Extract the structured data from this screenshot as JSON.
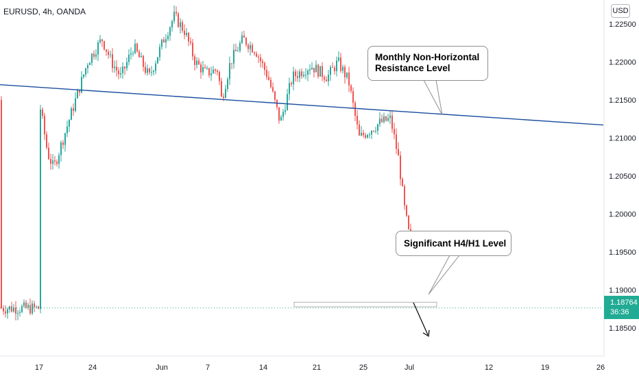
{
  "symbol": {
    "label": "EURUSD, 4h, OANDA"
  },
  "currency": {
    "label": "USD"
  },
  "price_tag": {
    "price": "1.18764",
    "countdown": "36:36"
  },
  "annotations": {
    "resistance": {
      "line1": "Monthly Non-Horizontal",
      "line2": "Resistance Level"
    },
    "significant": {
      "text": "Significant H4/H1 Level"
    }
  },
  "colors": {
    "up": "#26a69a",
    "down": "#ef5350",
    "trendline": "#1c4fa0",
    "price_line": "#22ab94",
    "axis_text": "#131722"
  },
  "chart_data": {
    "type": "candlestick",
    "symbol": "EURUSD",
    "timeframe": "4h",
    "broker": "OANDA",
    "ylim": [
      1.1815,
      1.2275
    ],
    "y_ticks": [
      "1.22500",
      "1.22000",
      "1.21500",
      "1.21000",
      "1.20500",
      "1.20000",
      "1.19500",
      "1.19000",
      "1.18500"
    ],
    "y_tick_values": [
      1.225,
      1.22,
      1.215,
      1.21,
      1.205,
      1.2,
      1.195,
      1.19,
      1.185
    ],
    "x_ticks": [
      "17",
      "24",
      "Jun",
      "7",
      "14",
      "21",
      "25",
      "Jul",
      "12",
      "19",
      "26"
    ],
    "current_price": 1.18764,
    "trendline": {
      "label": "Monthly Non-Horizontal Resistance Level",
      "start_price": 1.217,
      "end_price": 1.2117
    },
    "horizontal_zone": {
      "label": "Significant H4/H1 Level",
      "high": 1.1884,
      "low": 1.1878
    },
    "price_path": [
      [
        1.215,
        0
      ],
      [
        1.208,
        0.7
      ],
      [
        1.206,
        1.2
      ],
      [
        1.21,
        2.0
      ],
      [
        1.216,
        3.2
      ],
      [
        1.22,
        4.0
      ],
      [
        1.223,
        5.0
      ],
      [
        1.22,
        5.6
      ],
      [
        1.218,
        6.2
      ],
      [
        1.222,
        7.0
      ],
      [
        1.218,
        8.0
      ],
      [
        1.223,
        9.0
      ],
      [
        1.226,
        10.0
      ],
      [
        1.224,
        11.0
      ],
      [
        1.22,
        12.0
      ],
      [
        1.2185,
        13.0
      ],
      [
        1.219,
        14.0
      ],
      [
        1.215,
        14.3
      ],
      [
        1.22,
        15.0
      ],
      [
        1.223,
        16.0
      ],
      [
        1.2215,
        17.0
      ],
      [
        1.218,
        18.0
      ],
      [
        1.212,
        19.0
      ],
      [
        1.218,
        20.0
      ],
      [
        1.2195,
        21.5
      ],
      [
        1.218,
        23.0
      ],
      [
        1.22,
        24.0
      ],
      [
        1.2175,
        25.0
      ],
      [
        1.21,
        26.0
      ],
      [
        1.212,
        28.0
      ],
      [
        1.2125,
        29.0
      ],
      [
        1.207,
        29.8
      ],
      [
        1.201,
        30.3
      ],
      [
        1.197,
        30.8
      ],
      [
        1.19,
        31.4
      ],
      [
        1.187,
        32.2
      ],
      [
        1.19,
        33.0
      ],
      [
        1.192,
        34.0
      ],
      [
        1.188,
        35.0
      ],
      [
        1.193,
        36.0
      ],
      [
        1.195,
        37.5
      ],
      [
        1.1935,
        39.0
      ],
      [
        1.1945,
        40.5
      ],
      [
        1.193,
        41.5
      ],
      [
        1.19,
        42.5
      ],
      [
        1.188,
        43.2
      ],
      [
        1.185,
        44.0
      ],
      [
        1.1876,
        44.8
      ]
    ]
  }
}
